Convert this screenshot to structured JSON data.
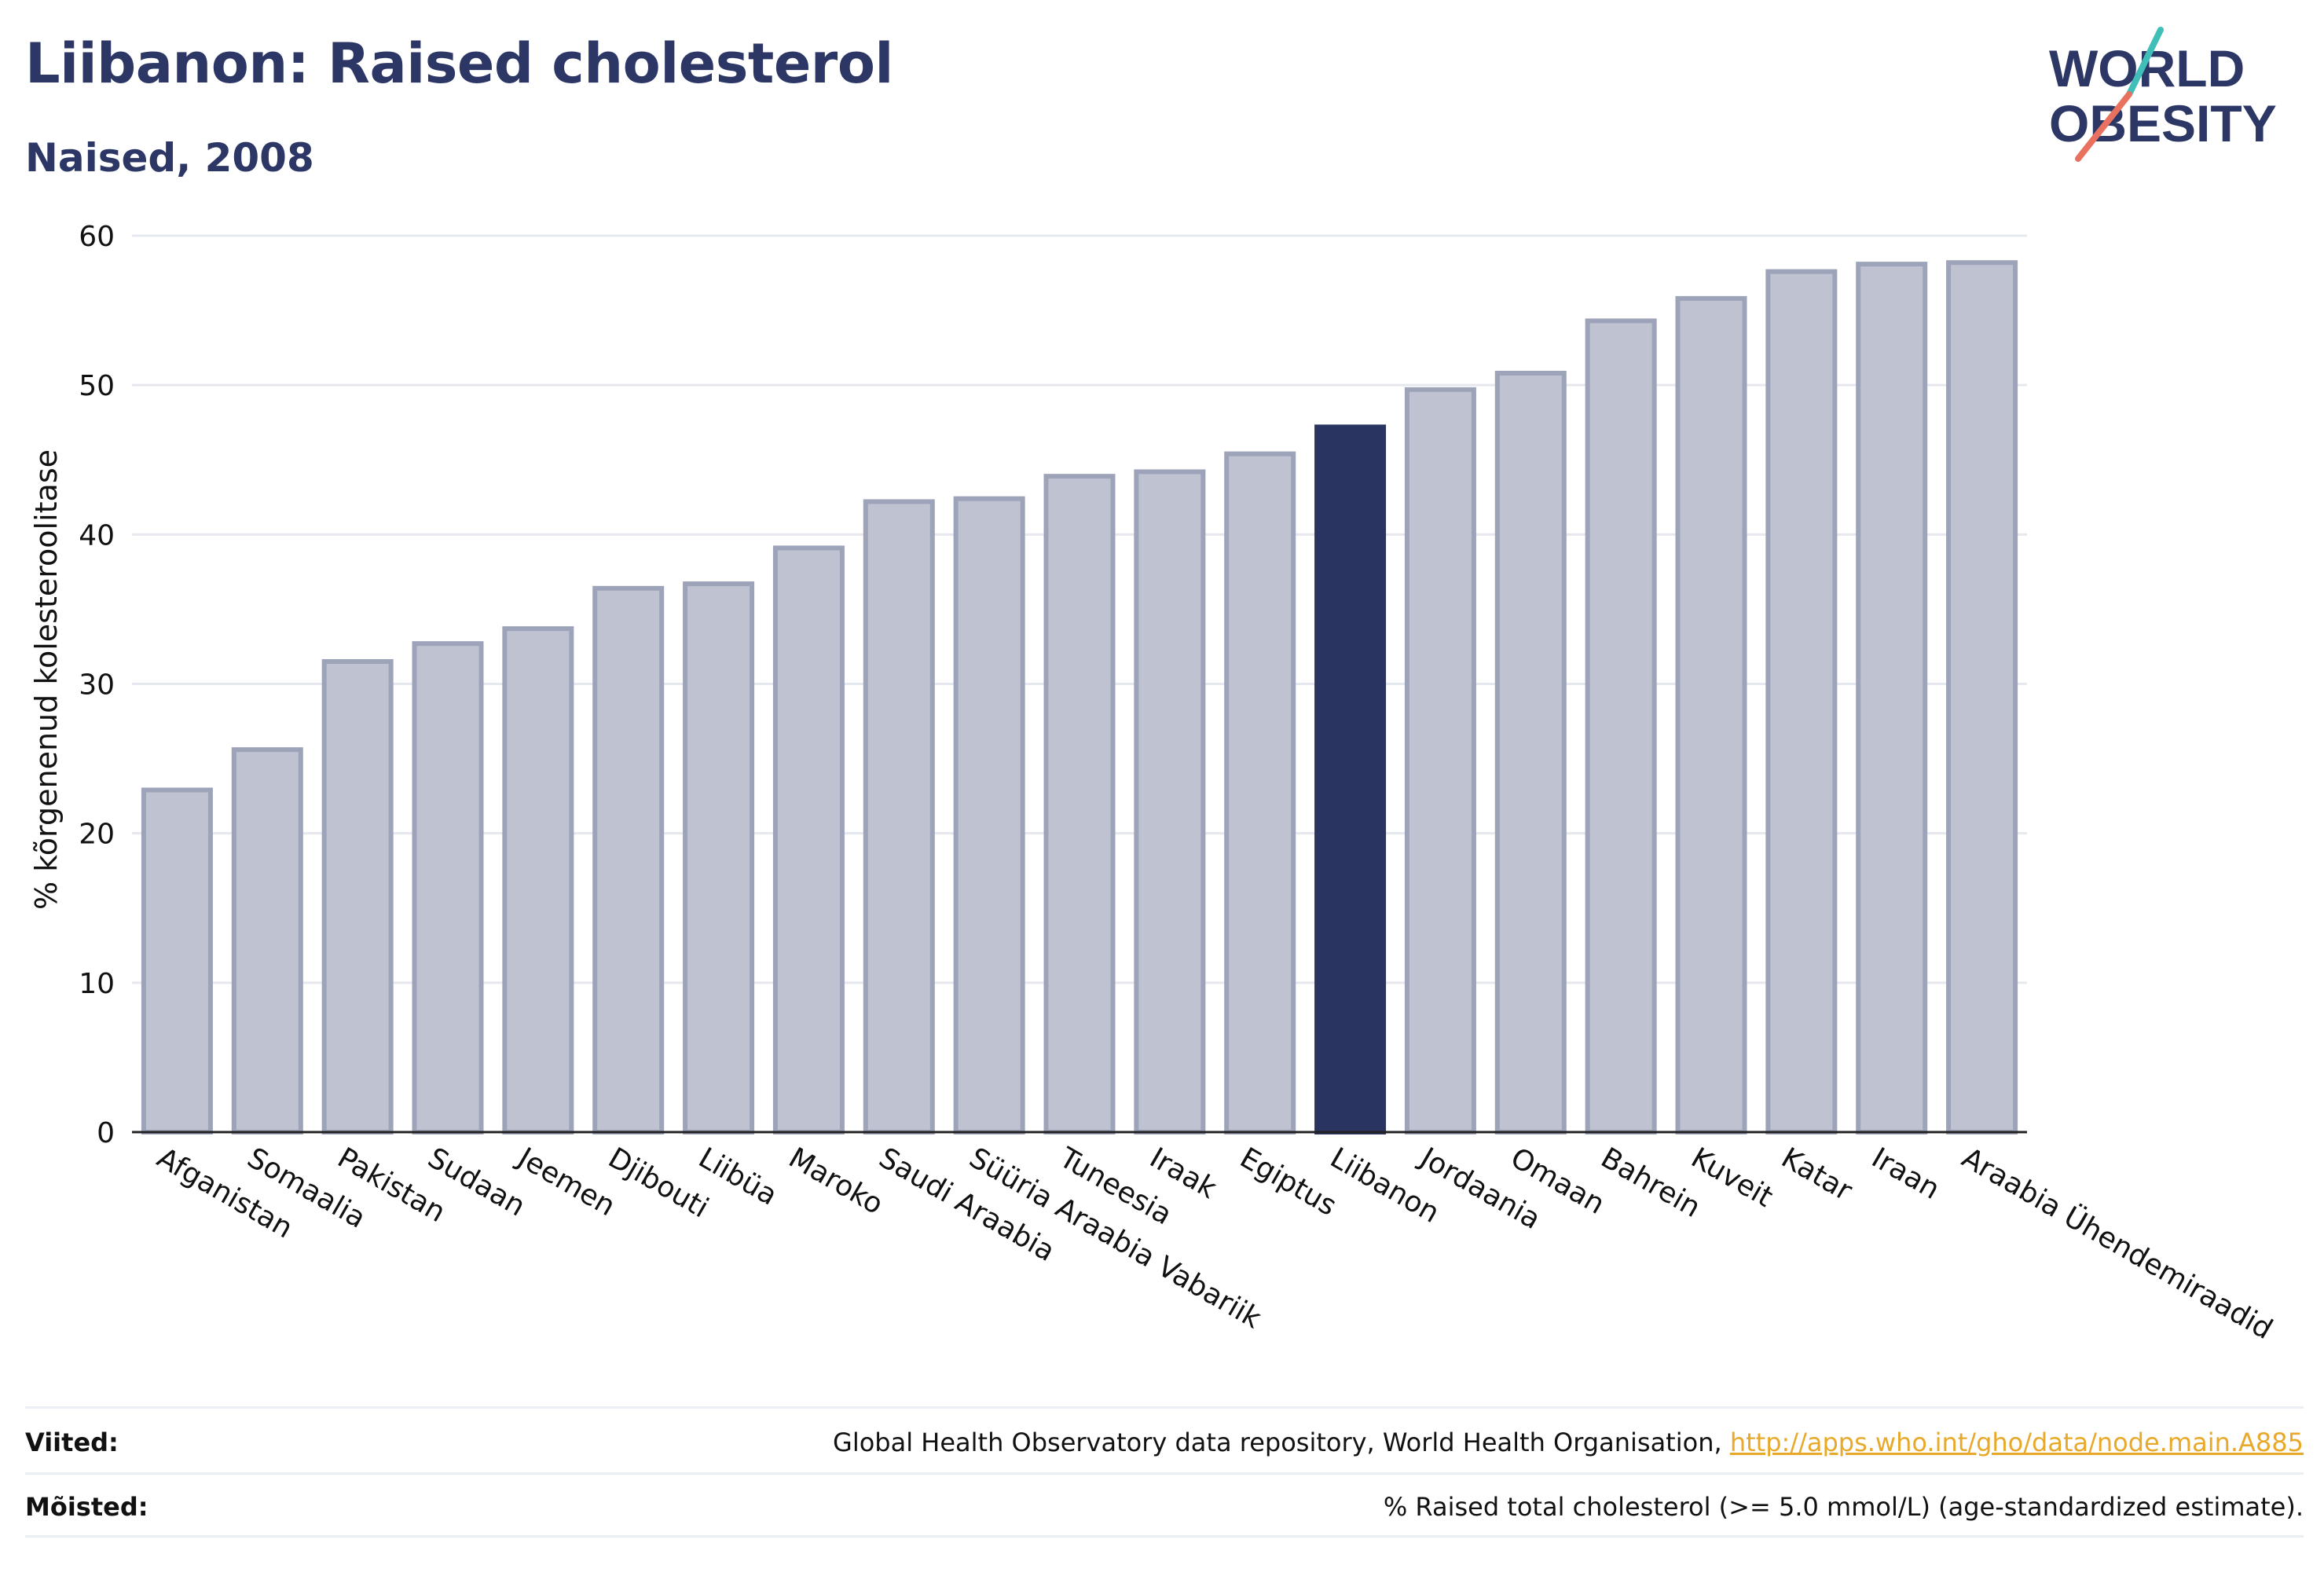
{
  "header": {
    "title": "Liibanon: Raised cholesterol",
    "subtitle": "Naised, 2008"
  },
  "logo": {
    "line1": "WORLD",
    "line2": "OBESITY"
  },
  "colors": {
    "highlight": "#2a3460",
    "bar_fill": "#bfc3d1",
    "bar_stroke": "#9da3b9",
    "text": "#2c3766",
    "link": "#e8a92a",
    "logo_teal": "#3fbfb8",
    "logo_coral": "#e8715f"
  },
  "chart_data": {
    "type": "bar",
    "ylabel": "% kõrgenenud kolesteroolitase",
    "xlabel": "",
    "ylim": [
      0,
      60
    ],
    "yticks": [
      0,
      10,
      20,
      30,
      40,
      50,
      60
    ],
    "grid": true,
    "highlight": "Liibanon",
    "categories": [
      "Afganistan",
      "Somaalia",
      "Pakistan",
      "Sudaan",
      "Jeemen",
      "Djibouti",
      "Liibüa",
      "Maroko",
      "Saudi Araabia",
      "Süüria Araabia Vabariik",
      "Tuneesia",
      "Iraak",
      "Egiptus",
      "Liibanon",
      "Jordaania",
      "Omaan",
      "Bahrein",
      "Kuveit",
      "Katar",
      "Iraan",
      "Araabia Ühendemiraadid"
    ],
    "values": [
      22.9,
      25.6,
      31.5,
      32.7,
      33.7,
      36.4,
      36.7,
      39.1,
      42.2,
      42.4,
      43.9,
      44.2,
      45.4,
      47.2,
      49.7,
      50.8,
      54.3,
      55.8,
      57.6,
      58.1,
      58.2
    ]
  },
  "footer": {
    "sources_label": "Viited:",
    "sources_text": "Global Health Observatory data repository, World Health Organisation, ",
    "sources_link": "http://apps.who.int/gho/data/node.main.A885",
    "definitions_label": "Mõisted:",
    "definitions_text": "% Raised total cholesterol (>= 5.0 mmol/L) (age-standardized estimate)."
  }
}
